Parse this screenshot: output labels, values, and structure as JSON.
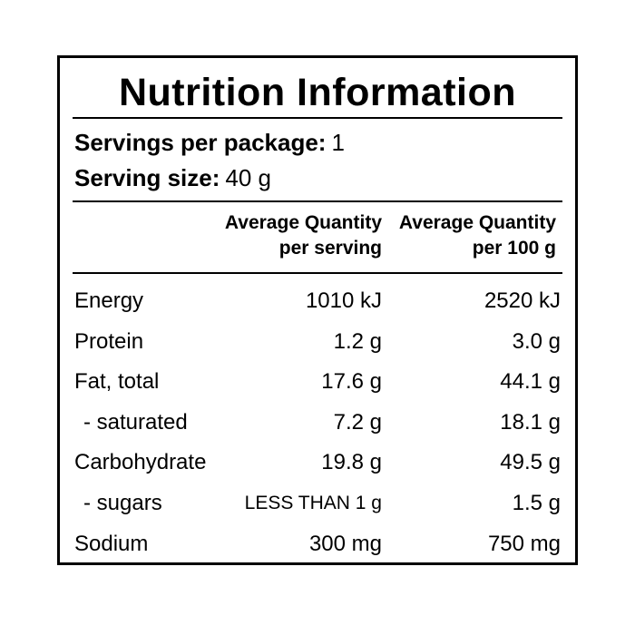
{
  "title": "Nutrition Information",
  "servings": {
    "per_package_label": "Servings per package:",
    "per_package_value": "1",
    "size_label": "Serving size:",
    "size_value": "40 g"
  },
  "columns": {
    "serving_line1": "Average Quantity",
    "serving_line2": "per serving",
    "per100_line1": "Average Quantity",
    "per100_line2": "per 100 g"
  },
  "rows": [
    {
      "name": "Energy",
      "per_serving": "1010 kJ",
      "per_100g": "2520 kJ"
    },
    {
      "name": "Protein",
      "per_serving": "1.2 g",
      "per_100g": "3.0 g"
    },
    {
      "name": "Fat, total",
      "per_serving": "17.6 g",
      "per_100g": "44.1 g"
    },
    {
      "name": "- saturated",
      "per_serving": "7.2 g",
      "per_100g": "18.1 g"
    },
    {
      "name": "Carbohydrate",
      "per_serving": "19.8 g",
      "per_100g": "49.5 g"
    },
    {
      "name": "- sugars",
      "per_serving": "LESS THAN 1 g",
      "per_100g": "1.5 g"
    },
    {
      "name": "Sodium",
      "per_serving": "300 mg",
      "per_100g": "750 mg"
    }
  ]
}
